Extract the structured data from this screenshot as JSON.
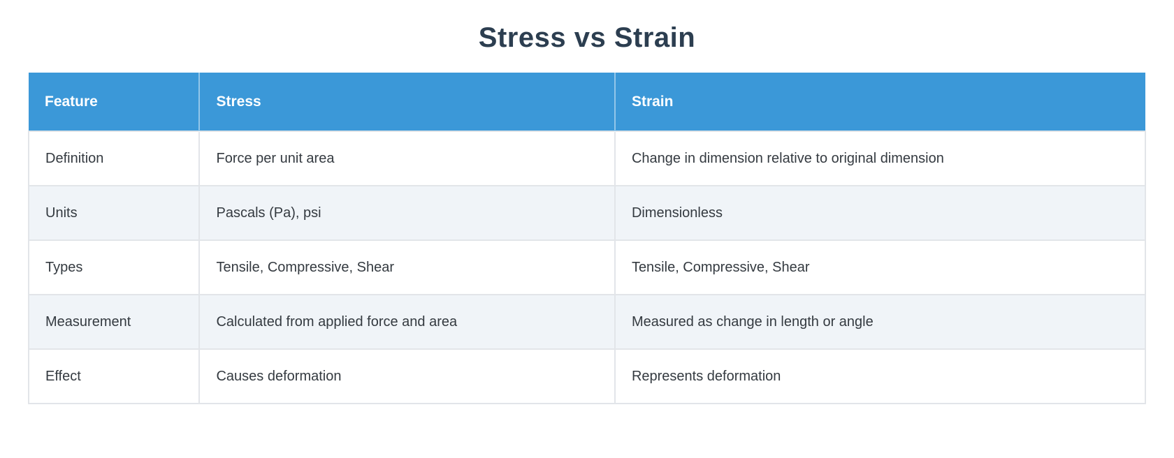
{
  "title": "Stress vs Strain",
  "colors": {
    "header_bg": "#3b98d8",
    "header_text": "#ffffff",
    "row_bg": "#ffffff",
    "alt_row_bg": "#f0f4f8",
    "border_color": "#e2e5e9",
    "title_color": "#2c3e50",
    "body_text": "#343a40"
  },
  "table": {
    "columns": [
      "Feature",
      "Stress",
      "Strain"
    ],
    "rows": [
      {
        "feature": "Definition",
        "stress": "Force per unit area",
        "strain": "Change in dimension relative to original dimension"
      },
      {
        "feature": "Units",
        "stress": "Pascals (Pa), psi",
        "strain": "Dimensionless"
      },
      {
        "feature": "Types",
        "stress": "Tensile, Compressive, Shear",
        "strain": "Tensile, Compressive, Shear"
      },
      {
        "feature": "Measurement",
        "stress": "Calculated from applied force and area",
        "strain": "Measured as change in length or angle"
      },
      {
        "feature": "Effect",
        "stress": "Causes deformation",
        "strain": "Represents deformation"
      }
    ]
  }
}
